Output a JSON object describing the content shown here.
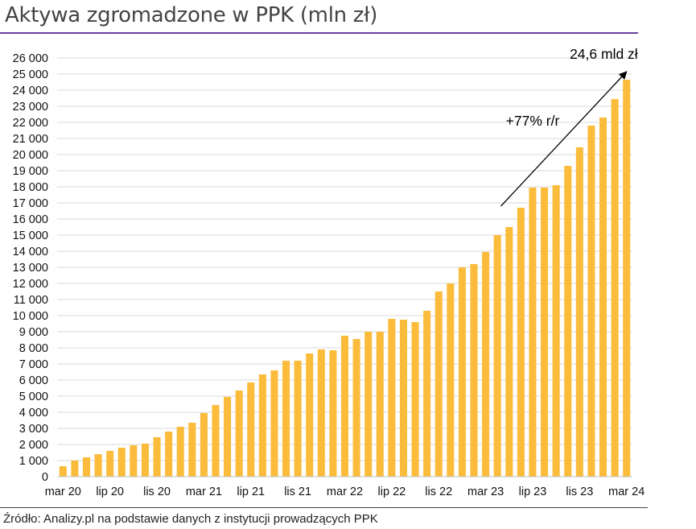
{
  "title": "Aktywa zgromadzone w PPK (mln zł)",
  "source": "Źródło: Analizy.pl na podstawie danych z instytucji prowadzących PPK",
  "colors": {
    "bar": "#fbbc3c",
    "grid": "#d9d9d9",
    "title_rule": "#6b3fa0",
    "arrow": "#000000"
  },
  "chart_data": {
    "type": "bar",
    "title": "Aktywa zgromadzone w PPK (mln zł)",
    "xlabel": "",
    "ylabel": "",
    "ylim": [
      0,
      26000
    ],
    "yticks": [
      0,
      1000,
      2000,
      3000,
      4000,
      5000,
      6000,
      7000,
      8000,
      9000,
      10000,
      11000,
      12000,
      13000,
      14000,
      15000,
      16000,
      17000,
      18000,
      19000,
      20000,
      21000,
      22000,
      23000,
      24000,
      25000,
      26000
    ],
    "ytick_labels": [
      "0",
      "1 000",
      "2 000",
      "3 000",
      "4 000",
      "5 000",
      "6 000",
      "7 000",
      "8 000",
      "9 000",
      "10 000",
      "11 000",
      "12 000",
      "13 000",
      "14 000",
      "15 000",
      "16 000",
      "17 000",
      "18 000",
      "19 000",
      "20 000",
      "21 000",
      "22 000",
      "23 000",
      "24 000",
      "25 000",
      "26 000"
    ],
    "xtick_labels": [
      {
        "index": 0,
        "label": "mar 20"
      },
      {
        "index": 4,
        "label": "lip 20"
      },
      {
        "index": 8,
        "label": "lis 20"
      },
      {
        "index": 12,
        "label": "mar 21"
      },
      {
        "index": 16,
        "label": "lip 21"
      },
      {
        "index": 20,
        "label": "lis 21"
      },
      {
        "index": 24,
        "label": "mar 22"
      },
      {
        "index": 28,
        "label": "lip 22"
      },
      {
        "index": 32,
        "label": "lis 22"
      },
      {
        "index": 36,
        "label": "mar 23"
      },
      {
        "index": 40,
        "label": "lip 23"
      },
      {
        "index": 44,
        "label": "lis 23"
      },
      {
        "index": 48,
        "label": "mar 24"
      }
    ],
    "grid": true,
    "legend": "none",
    "values": [
      650,
      1000,
      1200,
      1400,
      1600,
      1800,
      1950,
      2050,
      2450,
      2800,
      3100,
      3350,
      3950,
      4450,
      4950,
      5350,
      5850,
      6350,
      6600,
      7200,
      7200,
      7650,
      7900,
      7850,
      8750,
      8550,
      9000,
      9000,
      9800,
      9750,
      9600,
      10300,
      11500,
      12000,
      13000,
      13200,
      13950,
      15000,
      15500,
      16700,
      17950,
      17950,
      18100,
      19300,
      20450,
      21800,
      22300,
      23450,
      24650
    ],
    "annotations": [
      {
        "text": "24,6 mld zł",
        "x_index": 48,
        "y": 25950
      },
      {
        "text": "+77% r/r",
        "x_index": 40,
        "y": 21800
      }
    ],
    "arrow": {
      "from": {
        "x_index": 37.3,
        "y": 16800
      },
      "to": {
        "x_index": 48,
        "y": 25150
      }
    }
  }
}
